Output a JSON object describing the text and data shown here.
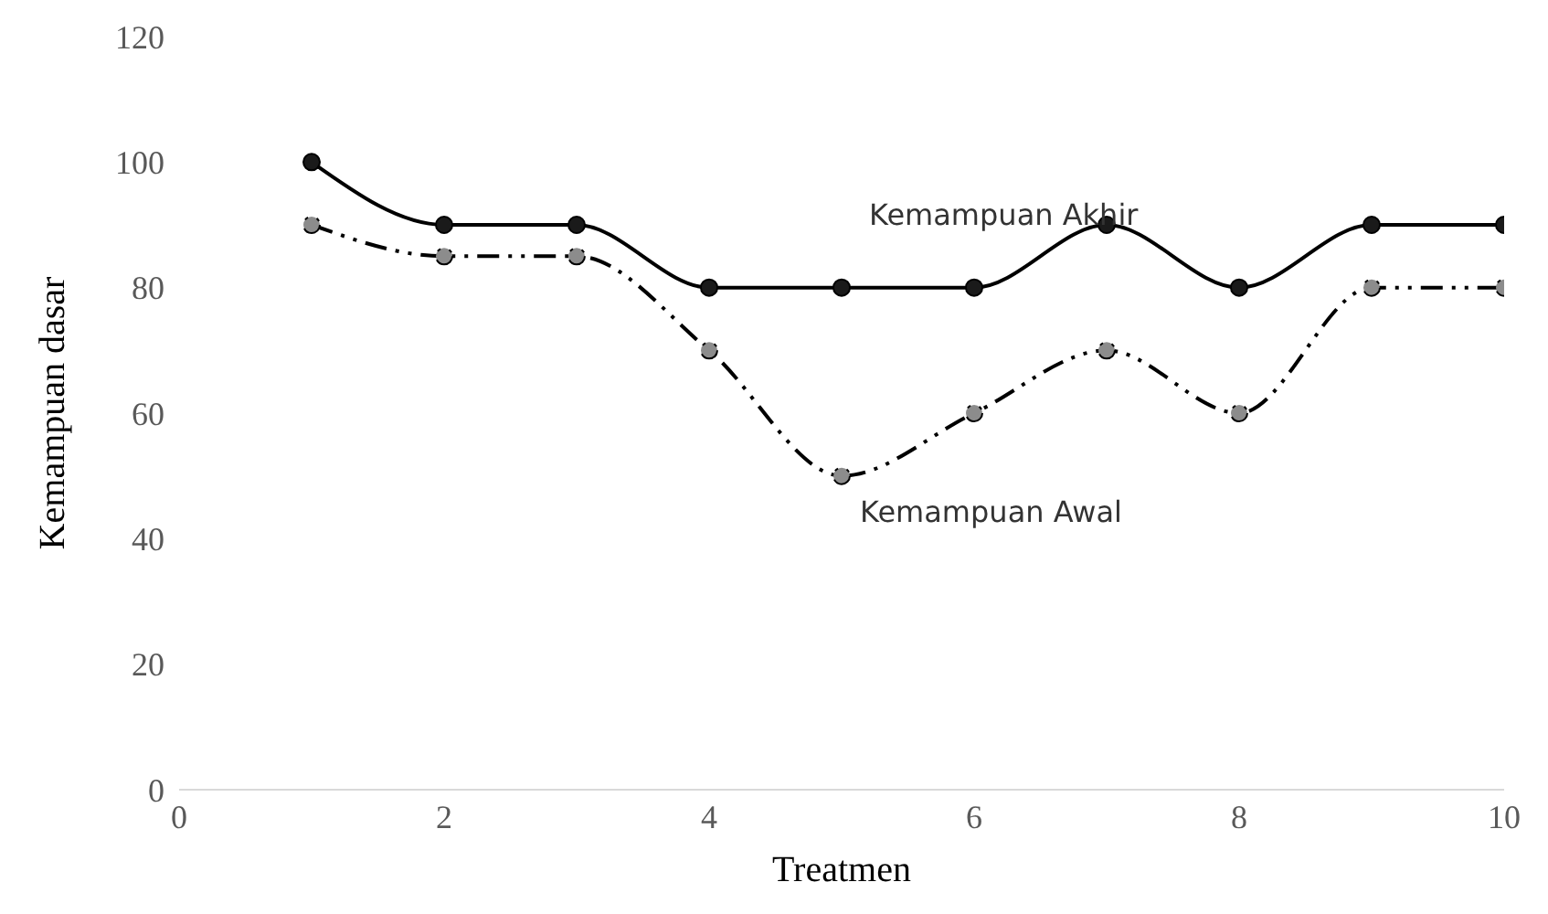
{
  "chart_data": {
    "type": "line",
    "xlabel": "Treatmen",
    "ylabel": "Kemampuan dasar",
    "x": [
      1,
      2,
      3,
      4,
      5,
      6,
      7,
      8,
      9,
      10
    ],
    "series": [
      {
        "name": "Kemampuan Akhir",
        "color": "#1a1a1a",
        "line_style": "solid",
        "values": [
          100,
          90,
          90,
          80,
          80,
          80,
          90,
          80,
          90,
          90
        ]
      },
      {
        "name": "Kemampuan Awal",
        "color": "#8c8c8c",
        "line_style": "dashed",
        "values": [
          90,
          85,
          85,
          70,
          50,
          60,
          70,
          60,
          80,
          80
        ]
      }
    ],
    "xlim": [
      0,
      10
    ],
    "xticks": [
      0,
      2,
      4,
      6,
      8,
      10
    ],
    "ylim": [
      0,
      120
    ],
    "yticks": [
      0,
      20,
      40,
      60,
      80,
      100,
      120
    ],
    "grid": false,
    "legend": false,
    "marker": "circle"
  }
}
